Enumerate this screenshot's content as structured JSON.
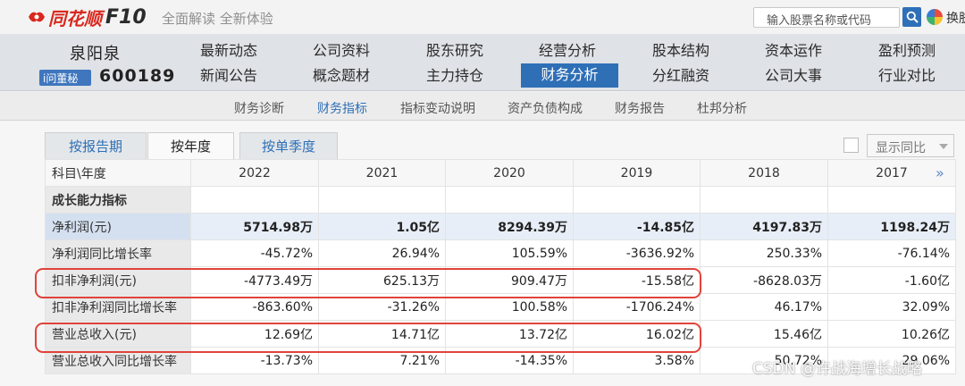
{
  "topbar": {
    "logo_text": "同花顺",
    "logo_f10": "F10",
    "slogan": "全面解读 全新体验",
    "search_placeholder": "输入股票名称或代码",
    "skin_label": "换肤"
  },
  "company": {
    "name": "泉阳泉",
    "badge": "i问董秘",
    "code": "600189"
  },
  "nav": {
    "row1": [
      "最新动态",
      "公司资料",
      "股东研究",
      "经营分析",
      "股本结构",
      "资本运作",
      "盈利预测"
    ],
    "row2": [
      "新闻公告",
      "概念题材",
      "主力持仓",
      "财务分析",
      "分红融资",
      "公司大事",
      "行业对比"
    ],
    "active": "财务分析"
  },
  "subnav": {
    "items": [
      "财务诊断",
      "财务指标",
      "指标变动说明",
      "资产负债构成",
      "财务报告",
      "杜邦分析"
    ],
    "active": "财务指标"
  },
  "tabs": {
    "items": [
      "按报告期",
      "按年度",
      "按单季度"
    ],
    "active": "按年度",
    "compare_label": "显示同比"
  },
  "table": {
    "header_label": "科目\\年度",
    "years": [
      "2022",
      "2021",
      "2020",
      "2019",
      "2018",
      "2017"
    ],
    "rows": [
      {
        "label": "成长能力指标",
        "section": true,
        "values": [
          "",
          "",
          "",
          "",
          "",
          ""
        ]
      },
      {
        "label": "净利润(元)",
        "highlight": true,
        "values": [
          "5714.98万",
          "1.05亿",
          "8294.39万",
          "-14.85亿",
          "4197.83万",
          "1198.24万"
        ]
      },
      {
        "label": "净利润同比增长率",
        "values": [
          "-45.72%",
          "26.94%",
          "105.59%",
          "-3636.92%",
          "250.33%",
          "-76.14%"
        ]
      },
      {
        "label": "扣非净利润(元)",
        "values": [
          "-4773.49万",
          "625.13万",
          "909.47万",
          "-15.58亿",
          "-8628.03万",
          "-1.60亿"
        ]
      },
      {
        "label": "扣非净利润同比增长率",
        "values": [
          "-863.60%",
          "-31.26%",
          "100.58%",
          "-1706.24%",
          "46.17%",
          "32.09%"
        ]
      },
      {
        "label": "营业总收入(元)",
        "values": [
          "12.69亿",
          "14.71亿",
          "13.72亿",
          "16.02亿",
          "15.46亿",
          "10.26亿"
        ]
      },
      {
        "label": "营业总收入同比增长率",
        "values": [
          "-13.73%",
          "7.21%",
          "-14.35%",
          "3.58%",
          "50.72%",
          "29.06%"
        ]
      }
    ]
  },
  "watermark": "CSDN @许战海增长战略",
  "colors": {
    "brand_red": "#d9281e",
    "nav_active": "#2e6fb6",
    "annotation_red": "#e0433a"
  }
}
